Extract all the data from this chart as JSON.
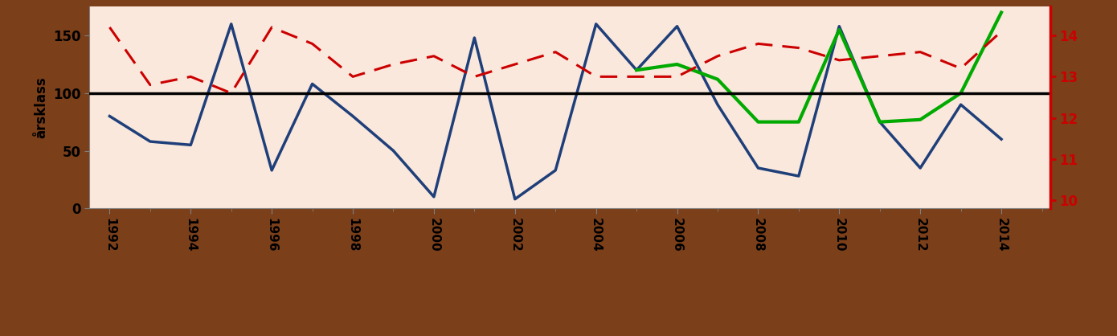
{
  "years_blue": [
    1992,
    1993,
    1994,
    1995,
    1996,
    1997,
    1998,
    1999,
    2000,
    2001,
    2002,
    2003,
    2004,
    2005,
    2006,
    2007,
    2008,
    2009,
    2010,
    2011,
    2012,
    2013,
    2014
  ],
  "blue_values": [
    80,
    58,
    55,
    160,
    33,
    108,
    80,
    50,
    10,
    148,
    8,
    33,
    160,
    120,
    158,
    90,
    35,
    28,
    158,
    75,
    35,
    90,
    60
  ],
  "years_red": [
    1992,
    1993,
    1994,
    1995,
    1996,
    1997,
    1998,
    1999,
    2000,
    2001,
    2002,
    2003,
    2004,
    2005,
    2006,
    2007,
    2008,
    2009,
    2010,
    2011,
    2012,
    2013,
    2014
  ],
  "red_values": [
    14.2,
    12.8,
    13.0,
    12.6,
    14.2,
    13.8,
    13.0,
    13.3,
    13.5,
    13.0,
    13.3,
    13.6,
    13.0,
    13.0,
    13.0,
    13.5,
    13.8,
    13.7,
    13.4,
    13.5,
    13.6,
    13.2,
    14.1
  ],
  "years_green": [
    2005,
    2006,
    2007,
    2008,
    2009,
    2010,
    2011,
    2012,
    2013,
    2014
  ],
  "green_values": [
    120,
    125,
    112,
    75,
    75,
    155,
    75,
    77,
    100,
    170
  ],
  "blue_color": "#1F3F7A",
  "red_color": "#CC0000",
  "green_color": "#00AA00",
  "black_line_y": 100,
  "ylabel_left": "årsklass",
  "ylabel_right_ticks": [
    10,
    11,
    12,
    13,
    14
  ],
  "ylim_left": [
    0,
    175
  ],
  "ylim_right": [
    9.8,
    14.7
  ],
  "xlim": [
    1991.5,
    2015.2
  ],
  "xtick_years": [
    1992,
    1994,
    1996,
    1998,
    2000,
    2002,
    2004,
    2006,
    2008,
    2010,
    2012,
    2014
  ],
  "background_color": "#FAE8DC",
  "outer_background": "#7B3F1A"
}
